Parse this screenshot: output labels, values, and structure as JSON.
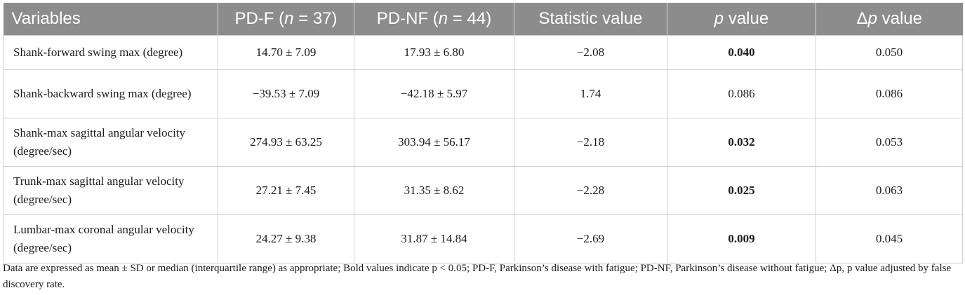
{
  "table": {
    "headers": {
      "variables": "Variables",
      "pdf_prefix": "PD-F (",
      "pdf_n": "n",
      "pdf_suffix": " = 37)",
      "pdnf_prefix": "PD-NF (",
      "pdnf_n": "n",
      "pdnf_suffix": " = 44)",
      "statistic": "Statistic value",
      "p_italic": "p",
      "p_suffix": " value",
      "dp_prefix": "Δ",
      "dp_italic": "p",
      "dp_suffix": " value"
    },
    "rows": [
      {
        "variable": "Shank-forward swing max (degree)",
        "pdf": "14.70 ± 7.09",
        "pdnf": "17.93 ± 6.80",
        "statistic": "−2.08",
        "p": "0.040",
        "p_bold": true,
        "dp": "0.050"
      },
      {
        "variable": "Shank-backward swing max (degree)",
        "pdf": "−39.53 ± 7.09",
        "pdnf": "−42.18 ± 5.97",
        "statistic": "1.74",
        "p": "0.086",
        "p_bold": false,
        "dp": "0.086"
      },
      {
        "variable": "Shank-max sagittal angular velocity (degree/sec)",
        "pdf": "274.93 ± 63.25",
        "pdnf": "303.94 ± 56.17",
        "statistic": "−2.18",
        "p": "0.032",
        "p_bold": true,
        "dp": "0.053"
      },
      {
        "variable": "Trunk-max sagittal angular velocity (degree/sec)",
        "pdf": "27.21 ± 7.45",
        "pdnf": "31.35 ± 8.62",
        "statistic": "−2.28",
        "p": "0.025",
        "p_bold": true,
        "dp": "0.063"
      },
      {
        "variable": "Lumbar-max coronal angular velocity (degree/sec)",
        "pdf": "24.27 ± 9.38",
        "pdnf": "31.87 ± 14.84",
        "statistic": "−2.69",
        "p": "0.009",
        "p_bold": true,
        "dp": "0.045"
      }
    ]
  },
  "footnote": "Data are expressed as mean ± SD or median (interquartile range) as appropriate; Bold values indicate p < 0.05; PD-F, Parkinson’s disease with fatigue; PD-NF, Parkinson’s disease without fatigue; Δp, p value adjusted by false discovery rate."
}
